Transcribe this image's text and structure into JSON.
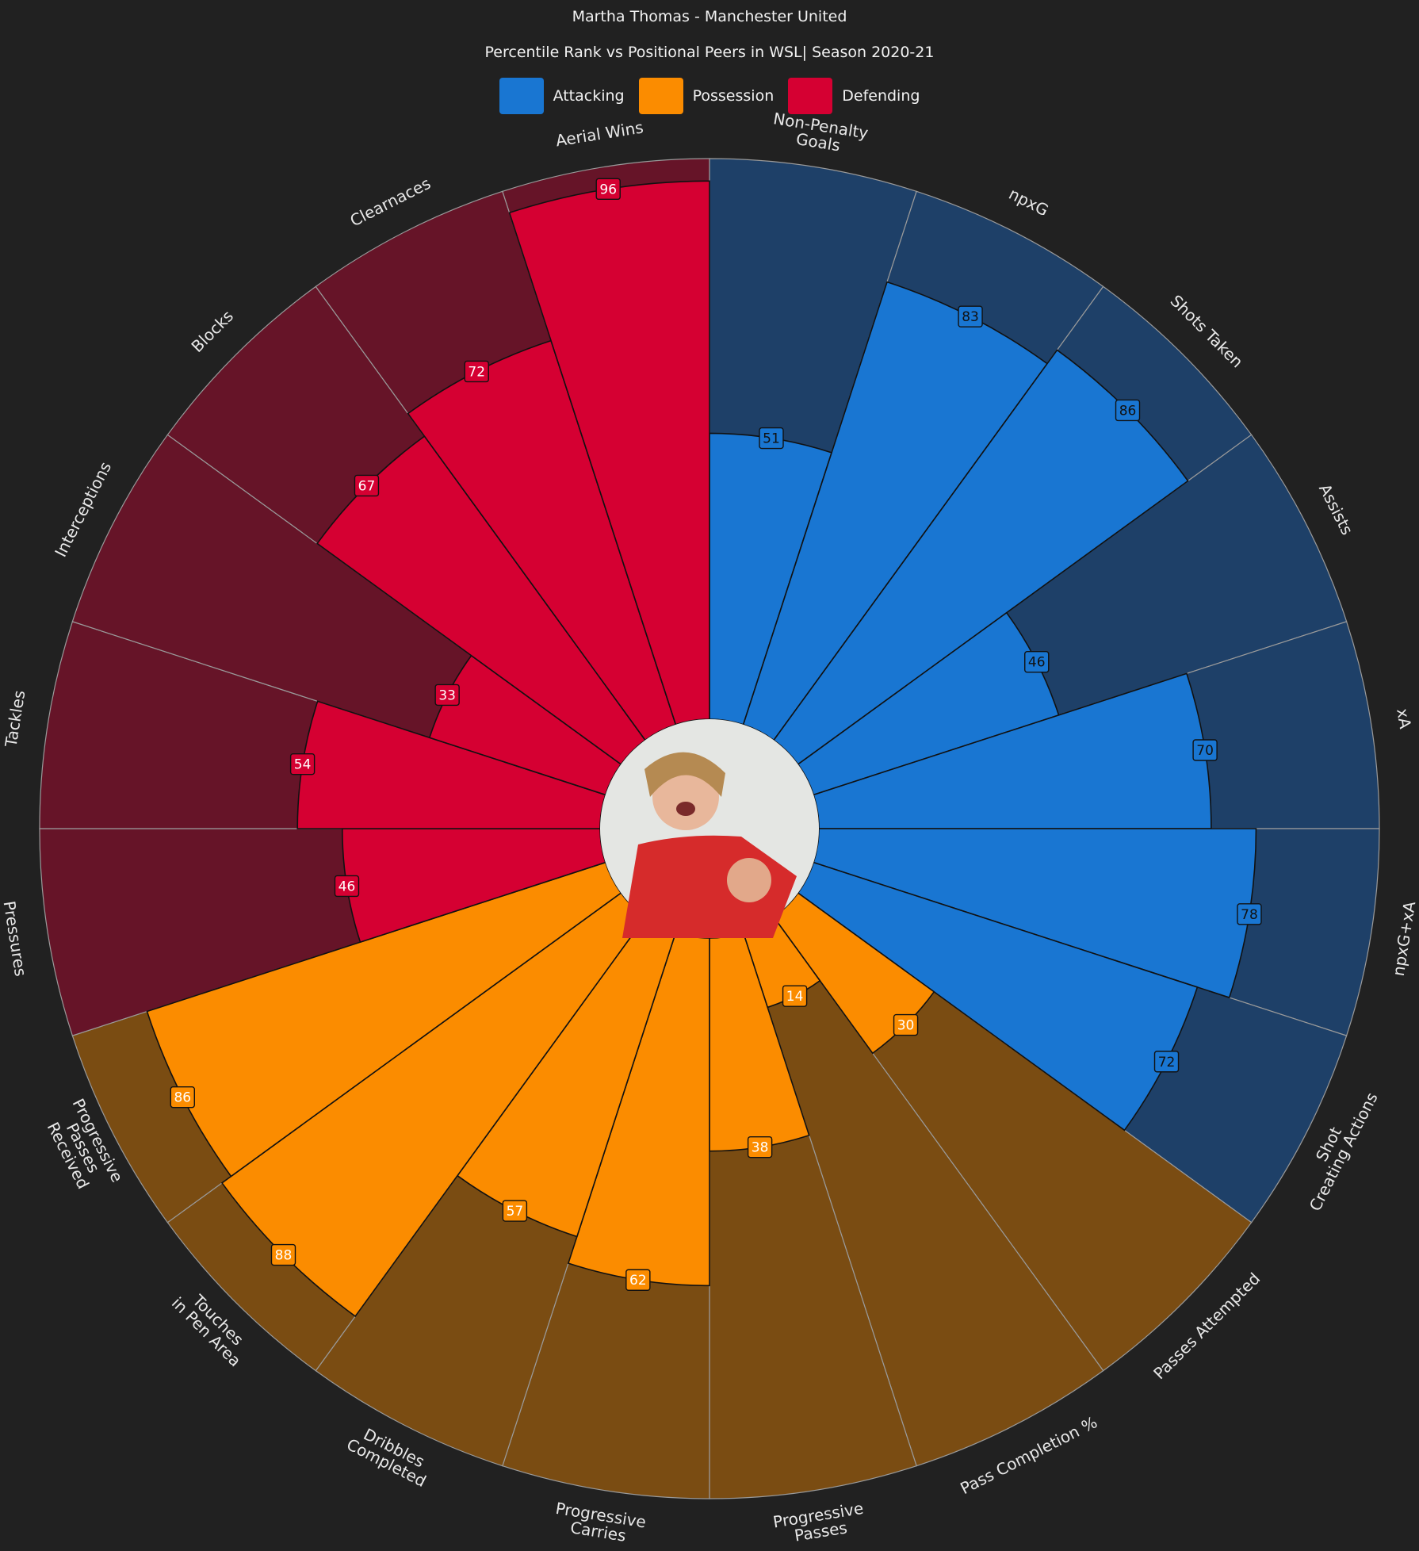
{
  "title": "Martha Thomas - Manchester United",
  "subtitle": "Percentile Rank vs Positional Peers in WSL| Season 2020-21",
  "legend": [
    {
      "label": "Attacking",
      "color": "#1976d2"
    },
    {
      "label": "Possession",
      "color": "#fb8c00"
    },
    {
      "label": "Defending",
      "color": "#d50032"
    }
  ],
  "avatar": "player-photo",
  "chart_data": {
    "type": "bar",
    "subtype": "polar-pizza",
    "ylim": [
      0,
      100
    ],
    "background_colors": {
      "Attacking": "#1e4068",
      "Possession": "#7a4c12",
      "Defending": "#661428"
    },
    "categories": [
      "Non-Penalty\nGoals",
      "npxG",
      "Shots Taken",
      "Assists",
      "xA",
      "npxG+xA",
      "Shot\nCreating Actions",
      "Passes Attempted",
      "Pass Completion %",
      "Progressive\nPasses",
      "Progressive\nCarries",
      "Dribbles\nCompleted",
      "Touches\nin Pen Area",
      "Progressive\nPasses\nReceived",
      "Pressures",
      "Tackles",
      "Interceptions",
      "Blocks",
      "Clearnaces",
      "Aerial Wins"
    ],
    "groups": [
      "Attacking",
      "Attacking",
      "Attacking",
      "Attacking",
      "Attacking",
      "Attacking",
      "Attacking",
      "Possession",
      "Possession",
      "Possession",
      "Possession",
      "Possession",
      "Possession",
      "Possession",
      "Defending",
      "Defending",
      "Defending",
      "Defending",
      "Defending",
      "Defending"
    ],
    "values": [
      51,
      83,
      86,
      46,
      70,
      78,
      72,
      30,
      14,
      38,
      62,
      57,
      88,
      86,
      46,
      54,
      33,
      67,
      72,
      96
    ]
  }
}
